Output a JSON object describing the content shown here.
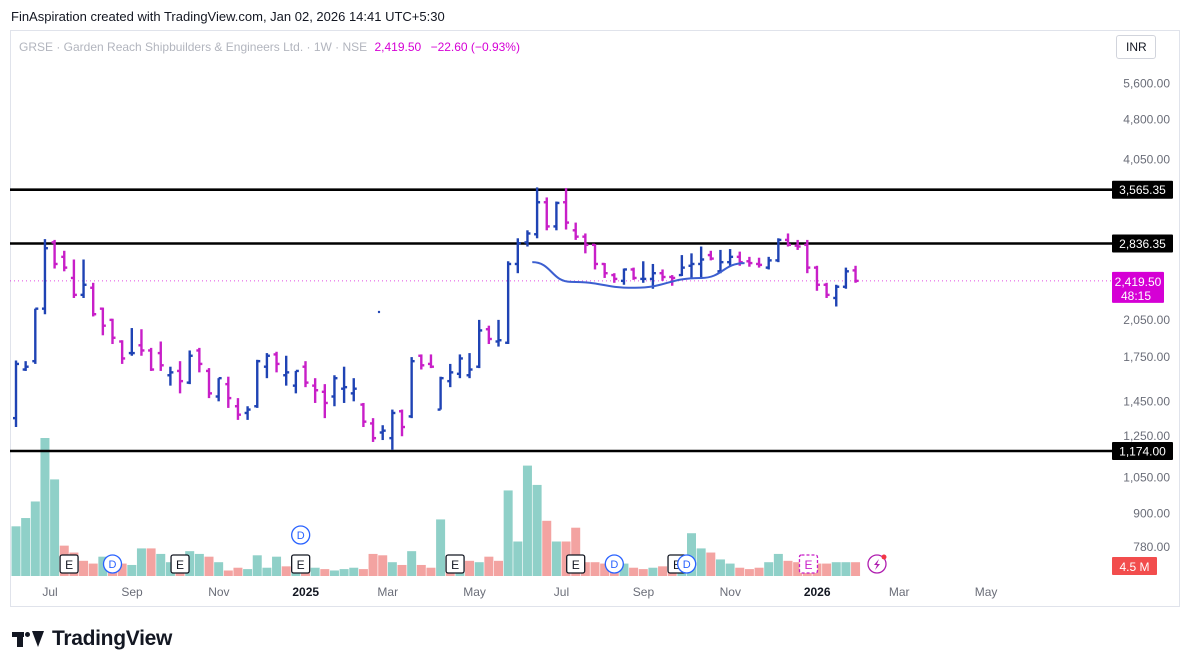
{
  "caption": "FinAspiration created with TradingView.com, Jan 02, 2026 14:41 UTC+5:30",
  "header": {
    "symbol_line": "GRSE · Garden Reach Shipbuilders & Engineers Ltd. · 1W · NSE",
    "last_price": "2,419.50",
    "change": "−22.60 (−0.93%)"
  },
  "currency": "INR",
  "brand": "TradingView",
  "colors": {
    "up": "#1f43b4",
    "down": "#c81fc8",
    "volume_up": "#8fd0c8",
    "volume_down": "#f3a3a1",
    "levels": "#000000",
    "curve": "#3c5fd0",
    "last_price_label": "#d500d5",
    "volume_label": "#f24d4d"
  },
  "chart_data": {
    "type": "ohlc",
    "scale": "log",
    "title": "GRSE · Garden Reach Shipbuilders & Engineers Ltd. · 1W · NSE",
    "price_axis_ticks": [
      "5,600.00",
      "4,800.00",
      "4,050.00",
      "2,050.00",
      "1,750.00",
      "1,450.00",
      "1,250.00",
      "1,050.00",
      "900.00",
      "780.00"
    ],
    "time_axis_ticks": [
      {
        "label": "Jul",
        "x": 0
      },
      {
        "label": "Sep",
        "x": 8.5
      },
      {
        "label": "Nov",
        "x": 17.5
      },
      {
        "label": "2025",
        "x": 26.5
      },
      {
        "label": "Mar",
        "x": 35
      },
      {
        "label": "May",
        "x": 44
      },
      {
        "label": "Jul",
        "x": 53
      },
      {
        "label": "Sep",
        "x": 61.5
      },
      {
        "label": "Nov",
        "x": 70.5
      },
      {
        "label": "2026",
        "x": 79.5
      },
      {
        "label": "Mar",
        "x": 88
      },
      {
        "label": "May",
        "x": 97
      }
    ],
    "horizontal_levels": [
      {
        "label": "3,565.35",
        "value": 3565.35
      },
      {
        "label": "2,836.35",
        "value": 2836.35
      },
      {
        "label": "1,174.00",
        "value": 1174
      }
    ],
    "last_price_label": {
      "value": 2419.5,
      "price": "2,419.50",
      "countdown": "48:15"
    },
    "volume_label": "4.5 M",
    "bars": [
      {
        "o": 1350,
        "h": 1725,
        "l": 1300,
        "c": 1700
      },
      {
        "o": 1660,
        "h": 1720,
        "l": 1650,
        "c": 1680
      },
      {
        "o": 1720,
        "h": 2150,
        "l": 1700,
        "c": 2150
      },
      {
        "o": 2150,
        "h": 2890,
        "l": 2100,
        "c": 2780
      },
      {
        "o": 2850,
        "h": 2880,
        "l": 2550,
        "c": 2600
      },
      {
        "o": 2680,
        "h": 2750,
        "l": 2520,
        "c": 2560
      },
      {
        "o": 2450,
        "h": 2650,
        "l": 2250,
        "c": 2280
      },
      {
        "o": 2280,
        "h": 2650,
        "l": 2250,
        "c": 2380
      },
      {
        "o": 2350,
        "h": 2400,
        "l": 2080,
        "c": 2100
      },
      {
        "o": 2150,
        "h": 2160,
        "l": 1920,
        "c": 2000
      },
      {
        "o": 2050,
        "h": 2060,
        "l": 1850,
        "c": 1900
      },
      {
        "o": 1870,
        "h": 1880,
        "l": 1700,
        "c": 1740
      },
      {
        "o": 1780,
        "h": 1980,
        "l": 1760,
        "c": 1780
      },
      {
        "o": 1840,
        "h": 1970,
        "l": 1760,
        "c": 1800
      },
      {
        "o": 1800,
        "h": 1820,
        "l": 1650,
        "c": 1660
      },
      {
        "o": 1780,
        "h": 1870,
        "l": 1650,
        "c": 1690
      },
      {
        "o": 1620,
        "h": 1680,
        "l": 1550,
        "c": 1640
      },
      {
        "o": 1650,
        "h": 1720,
        "l": 1500,
        "c": 1580
      },
      {
        "o": 1570,
        "h": 1800,
        "l": 1560,
        "c": 1760
      },
      {
        "o": 1800,
        "h": 1820,
        "l": 1640,
        "c": 1700
      },
      {
        "o": 1650,
        "h": 1670,
        "l": 1470,
        "c": 1500
      },
      {
        "o": 1480,
        "h": 1600,
        "l": 1450,
        "c": 1600
      },
      {
        "o": 1560,
        "h": 1610,
        "l": 1410,
        "c": 1470
      },
      {
        "o": 1420,
        "h": 1470,
        "l": 1340,
        "c": 1370
      },
      {
        "o": 1380,
        "h": 1420,
        "l": 1340,
        "c": 1400
      },
      {
        "o": 1420,
        "h": 1730,
        "l": 1410,
        "c": 1720
      },
      {
        "o": 1680,
        "h": 1780,
        "l": 1600,
        "c": 1760
      },
      {
        "o": 1770,
        "h": 1790,
        "l": 1640,
        "c": 1700
      },
      {
        "o": 1620,
        "h": 1760,
        "l": 1550,
        "c": 1640
      },
      {
        "o": 1550,
        "h": 1650,
        "l": 1500,
        "c": 1650
      },
      {
        "o": 1680,
        "h": 1720,
        "l": 1540,
        "c": 1570
      },
      {
        "o": 1550,
        "h": 1600,
        "l": 1440,
        "c": 1520
      },
      {
        "o": 1510,
        "h": 1560,
        "l": 1350,
        "c": 1440
      },
      {
        "o": 1480,
        "h": 1620,
        "l": 1420,
        "c": 1600
      },
      {
        "o": 1530,
        "h": 1680,
        "l": 1440,
        "c": 1540
      },
      {
        "o": 1500,
        "h": 1600,
        "l": 1450,
        "c": 1530
      },
      {
        "o": 1430,
        "h": 1440,
        "l": 1300,
        "c": 1330
      },
      {
        "o": 1320,
        "h": 1350,
        "l": 1220,
        "c": 1240
      },
      {
        "o": 1270,
        "h": 1310,
        "l": 1230,
        "c": 1280
      },
      {
        "o": 1240,
        "h": 1400,
        "l": 1180,
        "c": 1380
      },
      {
        "o": 1390,
        "h": 1400,
        "l": 1250,
        "c": 1300
      },
      {
        "o": 1360,
        "h": 1750,
        "l": 1350,
        "c": 1720
      },
      {
        "o": 1760,
        "h": 1770,
        "l": 1660,
        "c": 1690
      },
      {
        "o": 1700,
        "h": 1770,
        "l": 1670,
        "c": 1680
      },
      {
        "o": 1400,
        "h": 1610,
        "l": 1400,
        "c": 1600
      },
      {
        "o": 1580,
        "h": 1700,
        "l": 1540,
        "c": 1640
      },
      {
        "o": 1630,
        "h": 1770,
        "l": 1600,
        "c": 1740
      },
      {
        "o": 1620,
        "h": 1780,
        "l": 1600,
        "c": 1660
      },
      {
        "o": 1680,
        "h": 2050,
        "l": 1670,
        "c": 1960
      },
      {
        "o": 1970,
        "h": 2000,
        "l": 1850,
        "c": 1890
      },
      {
        "o": 1870,
        "h": 2050,
        "l": 1830,
        "c": 1880
      },
      {
        "o": 1860,
        "h": 2630,
        "l": 1850,
        "c": 2600
      },
      {
        "o": 2600,
        "h": 2900,
        "l": 2500,
        "c": 2840
      },
      {
        "o": 2850,
        "h": 3000,
        "l": 2800,
        "c": 2960
      },
      {
        "o": 2950,
        "h": 3600,
        "l": 2900,
        "c": 3380
      },
      {
        "o": 3380,
        "h": 3450,
        "l": 3000,
        "c": 3050
      },
      {
        "o": 3050,
        "h": 3390,
        "l": 3000,
        "c": 3370
      },
      {
        "o": 3380,
        "h": 3590,
        "l": 3010,
        "c": 3100
      },
      {
        "o": 3000,
        "h": 3100,
        "l": 2880,
        "c": 2920
      },
      {
        "o": 2920,
        "h": 2960,
        "l": 2720,
        "c": 2820
      },
      {
        "o": 2820,
        "h": 2830,
        "l": 2540,
        "c": 2600
      },
      {
        "o": 2600,
        "h": 2610,
        "l": 2450,
        "c": 2500
      },
      {
        "o": 2480,
        "h": 2500,
        "l": 2400,
        "c": 2440
      },
      {
        "o": 2420,
        "h": 2550,
        "l": 2380,
        "c": 2540
      },
      {
        "o": 2540,
        "h": 2560,
        "l": 2430,
        "c": 2450
      },
      {
        "o": 2440,
        "h": 2630,
        "l": 2400,
        "c": 2440
      },
      {
        "o": 2440,
        "h": 2600,
        "l": 2340,
        "c": 2500
      },
      {
        "o": 2500,
        "h": 2540,
        "l": 2420,
        "c": 2460
      },
      {
        "o": 2460,
        "h": 2480,
        "l": 2370,
        "c": 2450
      },
      {
        "o": 2480,
        "h": 2700,
        "l": 2470,
        "c": 2560
      },
      {
        "o": 2580,
        "h": 2720,
        "l": 2440,
        "c": 2600
      },
      {
        "o": 2600,
        "h": 2800,
        "l": 2440,
        "c": 2650
      },
      {
        "o": 2700,
        "h": 2750,
        "l": 2640,
        "c": 2660
      },
      {
        "o": 2520,
        "h": 2760,
        "l": 2500,
        "c": 2620
      },
      {
        "o": 2620,
        "h": 2770,
        "l": 2580,
        "c": 2680
      },
      {
        "o": 2680,
        "h": 2740,
        "l": 2580,
        "c": 2620
      },
      {
        "o": 2630,
        "h": 2680,
        "l": 2570,
        "c": 2610
      },
      {
        "o": 2600,
        "h": 2670,
        "l": 2560,
        "c": 2590
      },
      {
        "o": 2560,
        "h": 2680,
        "l": 2540,
        "c": 2640
      },
      {
        "o": 2640,
        "h": 2900,
        "l": 2620,
        "c": 2880
      },
      {
        "o": 2880,
        "h": 2960,
        "l": 2800,
        "c": 2820
      },
      {
        "o": 2810,
        "h": 2880,
        "l": 2760,
        "c": 2800
      },
      {
        "o": 2820,
        "h": 2880,
        "l": 2500,
        "c": 2560
      },
      {
        "o": 2560,
        "h": 2580,
        "l": 2320,
        "c": 2380
      },
      {
        "o": 2380,
        "h": 2400,
        "l": 2250,
        "c": 2280
      },
      {
        "o": 2250,
        "h": 2380,
        "l": 2170,
        "c": 2360
      },
      {
        "o": 2360,
        "h": 2560,
        "l": 2340,
        "c": 2520
      },
      {
        "o": 2530,
        "h": 2580,
        "l": 2400,
        "c": 2420
      }
    ],
    "volume_share": [
      0.36,
      0.42,
      0.54,
      1.0,
      0.7,
      0.22,
      0.17,
      0.11,
      0.09,
      0.14,
      0.07,
      0.09,
      0.08,
      0.2,
      0.2,
      0.16,
      0.1,
      0.06,
      0.18,
      0.16,
      0.14,
      0.1,
      0.04,
      0.06,
      0.05,
      0.15,
      0.06,
      0.14,
      0.07,
      0.06,
      0.04,
      0.06,
      0.05,
      0.04,
      0.05,
      0.06,
      0.05,
      0.16,
      0.15,
      0.1,
      0.08,
      0.18,
      0.08,
      0.06,
      0.41,
      0.11,
      0.1,
      0.11,
      0.1,
      0.14,
      0.11,
      0.62,
      0.25,
      0.8,
      0.66,
      0.4,
      0.25,
      0.25,
      0.35,
      0.1,
      0.1,
      0.09,
      0.08,
      0.09,
      0.06,
      0.05,
      0.06,
      0.07,
      0.05,
      0.14,
      0.31,
      0.2,
      0.17,
      0.12,
      0.09,
      0.06,
      0.05,
      0.06,
      0.1,
      0.16,
      0.11,
      0.1,
      0.1,
      0.09,
      0.09,
      0.1,
      0.1,
      0.1
    ],
    "volume_up": [
      true,
      true,
      true,
      true,
      true,
      false,
      false,
      false,
      false,
      true,
      false,
      false,
      true,
      true,
      false,
      true,
      true,
      false,
      true,
      true,
      false,
      true,
      false,
      false,
      true,
      true,
      true,
      true,
      false,
      true,
      false,
      true,
      false,
      true,
      true,
      true,
      false,
      false,
      false,
      true,
      false,
      true,
      false,
      false,
      true,
      false,
      true,
      false,
      true,
      false,
      false,
      true,
      true,
      true,
      true,
      false,
      true,
      false,
      false,
      false,
      false,
      false,
      false,
      true,
      false,
      false,
      true,
      false,
      false,
      true,
      true,
      true,
      false,
      true,
      true,
      false,
      false,
      false,
      true,
      true,
      false,
      false,
      false,
      false,
      false,
      true,
      true,
      false
    ],
    "annotations": {
      "earnings_markers": [
        {
          "label": "E",
          "x": 5.5
        },
        {
          "label": "E",
          "x": 17
        },
        {
          "label": "E",
          "x": 29.5
        },
        {
          "label": "E",
          "x": 45.5
        },
        {
          "label": "E",
          "x": 58
        },
        {
          "label": "E",
          "x": 68.5
        }
      ],
      "dividend_markers": [
        {
          "label": "D",
          "x": 10
        },
        {
          "label": "D",
          "x": 29.5
        },
        {
          "label": "D",
          "x": 62
        },
        {
          "label": "D",
          "x": 69.5
        }
      ],
      "upcoming_markers": [
        {
          "label": "E",
          "x": 81.5
        }
      ],
      "curve": {
        "points": [
          [
            53.5,
            2620
          ],
          [
            57.5,
            2410
          ],
          [
            64,
            2350
          ],
          [
            71,
            2450
          ],
          [
            75.5,
            2610
          ]
        ]
      }
    }
  }
}
